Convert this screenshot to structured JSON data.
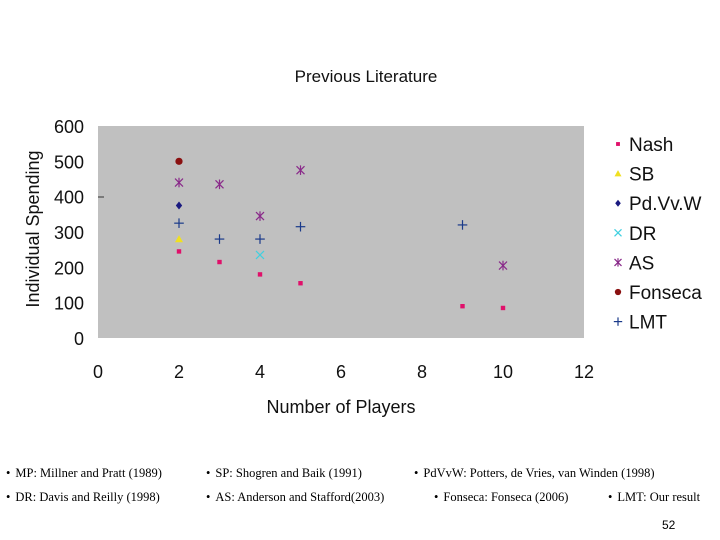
{
  "chart_data": {
    "type": "scatter",
    "title": "Previous Literature",
    "xlabel": "Number of Players",
    "ylabel": "Individual Spending",
    "xlim": [
      0,
      12
    ],
    "ylim": [
      0,
      600
    ],
    "x_ticks": [
      "0",
      "2",
      "4",
      "6",
      "8",
      "10",
      "12"
    ],
    "y_ticks": [
      "0",
      "100",
      "200",
      "300",
      "400",
      "500",
      "600"
    ],
    "grid": false,
    "plot_background": "#c0c0c0",
    "legend_position": "right",
    "series": [
      {
        "name": "Nash",
        "marker": "square",
        "color": "#e0106a",
        "points": [
          [
            2,
            245
          ],
          [
            3,
            215
          ],
          [
            4,
            180
          ],
          [
            5,
            155
          ],
          [
            9,
            90
          ],
          [
            10,
            85
          ]
        ]
      },
      {
        "name": "SB",
        "marker": "triangle",
        "color": "#f0e020",
        "points": [
          [
            2,
            280
          ]
        ]
      },
      {
        "name": "Pd.Vv.W",
        "marker": "diamond",
        "color": "#1a1a80",
        "points": [
          [
            2,
            375
          ]
        ]
      },
      {
        "name": "DR",
        "marker": "x",
        "color": "#40d0e0",
        "points": [
          [
            4,
            235
          ]
        ]
      },
      {
        "name": "AS",
        "marker": "asterisk",
        "color": "#8a2a8a",
        "points": [
          [
            2,
            440
          ],
          [
            3,
            435
          ],
          [
            4,
            345
          ],
          [
            5,
            475
          ],
          [
            10,
            205
          ]
        ]
      },
      {
        "name": "Fonseca",
        "marker": "circle",
        "color": "#8a1010",
        "points": [
          [
            2,
            500
          ]
        ]
      },
      {
        "name": "LMT",
        "marker": "plus",
        "color": "#1a3a8a",
        "points": [
          [
            2,
            325
          ],
          [
            3,
            280
          ],
          [
            4,
            280
          ],
          [
            5,
            315
          ],
          [
            9,
            320
          ]
        ]
      }
    ]
  },
  "references": [
    [
      "MP: Millner and Pratt (1989)",
      "SP: Shogren and Baik (1991)",
      "PdVvW: Potters, de Vries, van Winden (1998)"
    ],
    [
      "DR: Davis and Reilly (1998)",
      "AS: Anderson and Stafford(2003)",
      "Fonseca: Fonseca (2006)",
      "LMT: Our result"
    ]
  ],
  "page_number": "52"
}
